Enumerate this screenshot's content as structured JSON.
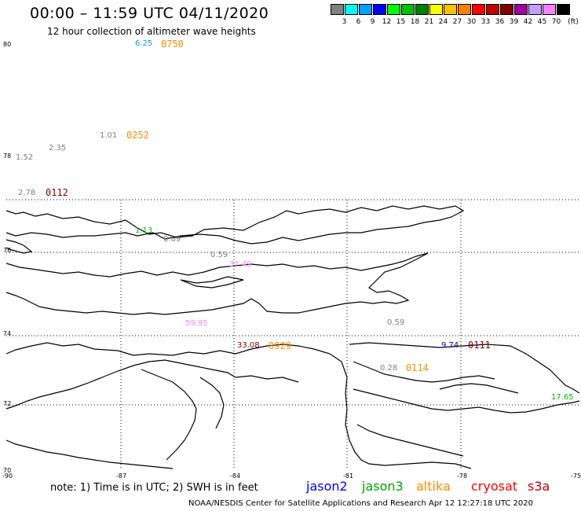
{
  "header": {
    "title": "00:00 – 11:59 UTC 04/11/2020",
    "subtitle": "12 hour collection of altimeter wave heights"
  },
  "colorbar": {
    "colors": [
      "#808080",
      "#00ffff",
      "#00a0ff",
      "#0000ff",
      "#00ff00",
      "#00c000",
      "#008000",
      "#ffff00",
      "#ffc000",
      "#ff8000",
      "#ff0000",
      "#c00000",
      "#800000",
      "#a000a0",
      "#c0a0ff",
      "#ff80ff",
      "#000000"
    ],
    "ticks": [
      "3",
      "6",
      "9",
      "12",
      "15",
      "18",
      "21",
      "24",
      "27",
      "30",
      "33",
      "36",
      "39",
      "42",
      "45",
      "70"
    ],
    "unit": "(ft)"
  },
  "axes": {
    "lat_labels": [
      "80",
      "78",
      "76",
      "74",
      "72",
      "70"
    ],
    "lon_labels": [
      "-90",
      "-87",
      "-84",
      "-81",
      "-78",
      "-75"
    ]
  },
  "observations": [
    {
      "value": "6.25",
      "color": "#00a0e0"
    },
    {
      "value": "1.01",
      "color": "#808080"
    },
    {
      "value": "2.35",
      "color": "#808080"
    },
    {
      "value": "1.52",
      "color": "#808080"
    },
    {
      "value": "2.78",
      "color": "#808080"
    },
    {
      "value": "1.13",
      "color": "#00c000"
    },
    {
      "value": "0.69",
      "color": "#808080"
    },
    {
      "value": "0.59",
      "color": "#808080"
    },
    {
      "value": "31.49",
      "color": "#ff80ff"
    },
    {
      "value": "59.95",
      "color": "#ff80ff"
    },
    {
      "value": "0.59",
      "color": "#808080"
    },
    {
      "value": "33.08",
      "color": "#800000"
    },
    {
      "value": "9.74",
      "color": "#0000c0"
    },
    {
      "value": "0.28",
      "color": "#808080"
    },
    {
      "value": "17.65",
      "color": "#00c000"
    }
  ],
  "pass_times": [
    {
      "value": "0750",
      "color": "#ff8c00"
    },
    {
      "value": "0252",
      "color": "#ff8c00"
    },
    {
      "value": "0112",
      "color": "#800000"
    },
    {
      "value": "0929",
      "color": "#ff8c00"
    },
    {
      "value": "0111",
      "color": "#800000"
    },
    {
      "value": "0114",
      "color": "#ff8c00"
    }
  ],
  "footer": {
    "note": "note:  1) Time is in UTC;  2) SWH is in feet",
    "satellites": [
      {
        "name": "jason2",
        "color": "#0000ff"
      },
      {
        "name": "jason3",
        "color": "#00a000"
      },
      {
        "name": "altika",
        "color": "#ff8c00"
      },
      {
        "name": "cryosat",
        "color": "#ff0000"
      },
      {
        "name": "s3a",
        "color": "#c00000"
      }
    ],
    "credit": "NOAA/NESDIS Center for Satellite Applications and Research    Apr 12 12:27:18 UTC 2020"
  }
}
